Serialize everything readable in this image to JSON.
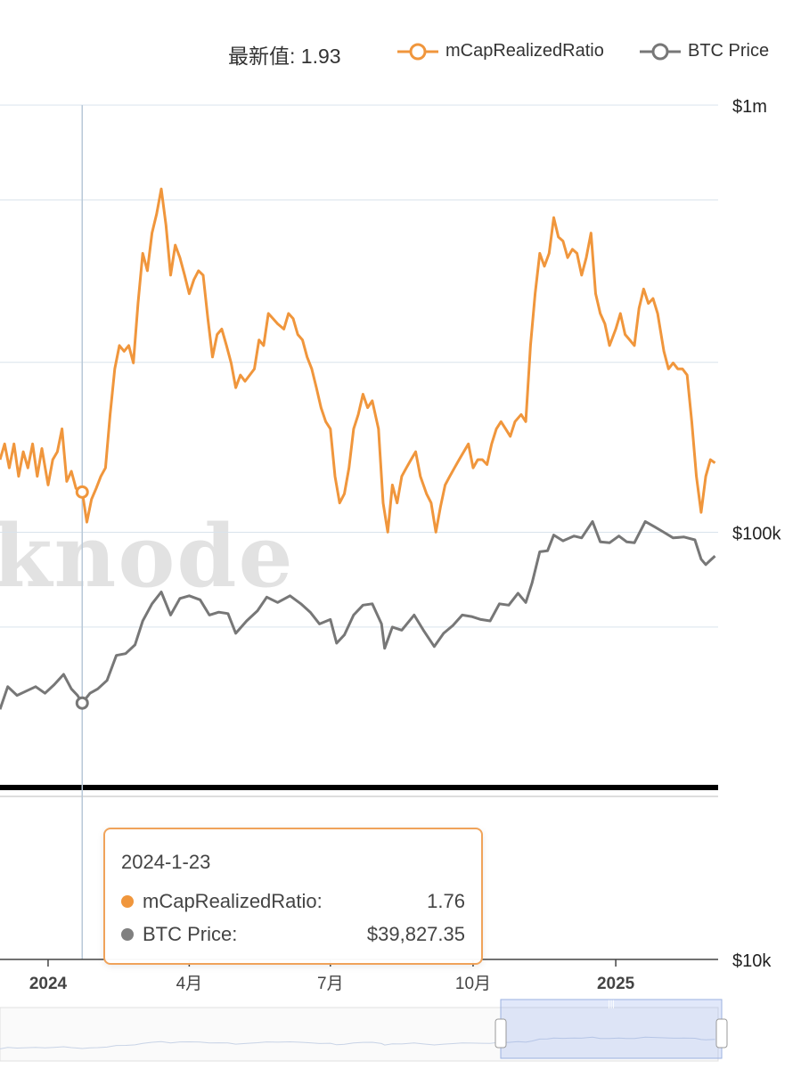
{
  "header": {
    "latest_label": "最新值: 1.93"
  },
  "chart_data": {
    "type": "line",
    "x_range": [
      "2023-12-01",
      "2025-03-08"
    ],
    "x_ticks": [
      {
        "date": "2024-01-01",
        "label": "2024",
        "bold": true
      },
      {
        "date": "2024-04-01",
        "label": "4月",
        "bold": false
      },
      {
        "date": "2024-07-01",
        "label": "7月",
        "bold": false
      },
      {
        "date": "2024-10-01",
        "label": "10月",
        "bold": false
      },
      {
        "date": "2025-01-01",
        "label": "2025",
        "bold": true
      }
    ],
    "y_right": {
      "scale": "log",
      "range": [
        10000,
        1000000
      ],
      "ticks": [
        {
          "value": 1000000,
          "label": "$1m"
        },
        {
          "value": 100000,
          "label": "$100k"
        },
        {
          "value": 10000,
          "label": "$10k"
        }
      ]
    },
    "y_left": {
      "scale": "log",
      "range": [
        0.4,
        6.0
      ]
    },
    "series": [
      {
        "name": "mCapRealizedRatio",
        "color": "#f0963c",
        "axis": "left",
        "points": [
          [
            "2023-12-01",
            1.95
          ],
          [
            "2023-12-04",
            2.05
          ],
          [
            "2023-12-07",
            1.9
          ],
          [
            "2023-12-10",
            2.05
          ],
          [
            "2023-12-13",
            1.85
          ],
          [
            "2023-12-16",
            2.0
          ],
          [
            "2023-12-19",
            1.9
          ],
          [
            "2023-12-22",
            2.05
          ],
          [
            "2023-12-25",
            1.85
          ],
          [
            "2023-12-28",
            2.02
          ],
          [
            "2024-01-01",
            1.8
          ],
          [
            "2024-01-04",
            1.95
          ],
          [
            "2024-01-07",
            2.0
          ],
          [
            "2024-01-10",
            2.15
          ],
          [
            "2024-01-13",
            1.82
          ],
          [
            "2024-01-16",
            1.88
          ],
          [
            "2024-01-19",
            1.78
          ],
          [
            "2024-01-23",
            1.76
          ],
          [
            "2024-01-26",
            1.6
          ],
          [
            "2024-01-29",
            1.72
          ],
          [
            "2024-02-01",
            1.78
          ],
          [
            "2024-02-04",
            1.85
          ],
          [
            "2024-02-07",
            1.9
          ],
          [
            "2024-02-10",
            2.25
          ],
          [
            "2024-02-13",
            2.6
          ],
          [
            "2024-02-16",
            2.8
          ],
          [
            "2024-02-19",
            2.75
          ],
          [
            "2024-02-22",
            2.8
          ],
          [
            "2024-02-25",
            2.65
          ],
          [
            "2024-02-28",
            3.2
          ],
          [
            "2024-03-02",
            3.75
          ],
          [
            "2024-03-05",
            3.55
          ],
          [
            "2024-03-08",
            4.0
          ],
          [
            "2024-03-11",
            4.25
          ],
          [
            "2024-03-14",
            4.6
          ],
          [
            "2024-03-17",
            4.1
          ],
          [
            "2024-03-20",
            3.5
          ],
          [
            "2024-03-23",
            3.85
          ],
          [
            "2024-03-26",
            3.7
          ],
          [
            "2024-03-29",
            3.5
          ],
          [
            "2024-04-01",
            3.3
          ],
          [
            "2024-04-04",
            3.45
          ],
          [
            "2024-04-07",
            3.55
          ],
          [
            "2024-04-10",
            3.5
          ],
          [
            "2024-04-13",
            3.05
          ],
          [
            "2024-04-16",
            2.7
          ],
          [
            "2024-04-19",
            2.9
          ],
          [
            "2024-04-22",
            2.95
          ],
          [
            "2024-04-25",
            2.8
          ],
          [
            "2024-04-28",
            2.65
          ],
          [
            "2024-05-01",
            2.45
          ],
          [
            "2024-05-04",
            2.55
          ],
          [
            "2024-05-07",
            2.5
          ],
          [
            "2024-05-10",
            2.55
          ],
          [
            "2024-05-13",
            2.6
          ],
          [
            "2024-05-16",
            2.85
          ],
          [
            "2024-05-19",
            2.8
          ],
          [
            "2024-05-22",
            3.1
          ],
          [
            "2024-05-25",
            3.05
          ],
          [
            "2024-05-28",
            3.0
          ],
          [
            "2024-06-01",
            2.95
          ],
          [
            "2024-06-04",
            3.1
          ],
          [
            "2024-06-07",
            3.05
          ],
          [
            "2024-06-10",
            2.9
          ],
          [
            "2024-06-13",
            2.85
          ],
          [
            "2024-06-16",
            2.7
          ],
          [
            "2024-06-19",
            2.6
          ],
          [
            "2024-06-22",
            2.45
          ],
          [
            "2024-06-25",
            2.3
          ],
          [
            "2024-06-28",
            2.2
          ],
          [
            "2024-07-01",
            2.15
          ],
          [
            "2024-07-04",
            1.85
          ],
          [
            "2024-07-07",
            1.7
          ],
          [
            "2024-07-10",
            1.75
          ],
          [
            "2024-07-13",
            1.9
          ],
          [
            "2024-07-16",
            2.15
          ],
          [
            "2024-07-19",
            2.25
          ],
          [
            "2024-07-22",
            2.4
          ],
          [
            "2024-07-25",
            2.3
          ],
          [
            "2024-07-28",
            2.35
          ],
          [
            "2024-08-01",
            2.15
          ],
          [
            "2024-08-04",
            1.7
          ],
          [
            "2024-08-07",
            1.55
          ],
          [
            "2024-08-10",
            1.8
          ],
          [
            "2024-08-13",
            1.7
          ],
          [
            "2024-08-16",
            1.85
          ],
          [
            "2024-08-19",
            1.9
          ],
          [
            "2024-08-22",
            1.95
          ],
          [
            "2024-08-25",
            2.0
          ],
          [
            "2024-08-28",
            1.85
          ],
          [
            "2024-09-01",
            1.75
          ],
          [
            "2024-09-04",
            1.7
          ],
          [
            "2024-09-07",
            1.55
          ],
          [
            "2024-09-10",
            1.68
          ],
          [
            "2024-09-13",
            1.8
          ],
          [
            "2024-09-16",
            1.85
          ],
          [
            "2024-09-19",
            1.9
          ],
          [
            "2024-09-22",
            1.95
          ],
          [
            "2024-09-25",
            2.0
          ],
          [
            "2024-09-28",
            2.05
          ],
          [
            "2024-10-01",
            1.9
          ],
          [
            "2024-10-04",
            1.95
          ],
          [
            "2024-10-07",
            1.95
          ],
          [
            "2024-10-10",
            1.92
          ],
          [
            "2024-10-13",
            2.05
          ],
          [
            "2024-10-16",
            2.15
          ],
          [
            "2024-10-19",
            2.2
          ],
          [
            "2024-10-22",
            2.15
          ],
          [
            "2024-10-25",
            2.1
          ],
          [
            "2024-10-28",
            2.2
          ],
          [
            "2024-11-01",
            2.25
          ],
          [
            "2024-11-04",
            2.2
          ],
          [
            "2024-11-07",
            2.8
          ],
          [
            "2024-11-10",
            3.3
          ],
          [
            "2024-11-13",
            3.75
          ],
          [
            "2024-11-16",
            3.6
          ],
          [
            "2024-11-19",
            3.75
          ],
          [
            "2024-11-22",
            4.2
          ],
          [
            "2024-11-25",
            3.95
          ],
          [
            "2024-11-28",
            3.9
          ],
          [
            "2024-12-01",
            3.7
          ],
          [
            "2024-12-04",
            3.8
          ],
          [
            "2024-12-07",
            3.75
          ],
          [
            "2024-12-10",
            3.5
          ],
          [
            "2024-12-13",
            3.7
          ],
          [
            "2024-12-16",
            4.0
          ],
          [
            "2024-12-19",
            3.3
          ],
          [
            "2024-12-22",
            3.1
          ],
          [
            "2024-12-25",
            3.0
          ],
          [
            "2024-12-28",
            2.8
          ],
          [
            "2025-01-01",
            2.95
          ],
          [
            "2025-01-04",
            3.1
          ],
          [
            "2025-01-07",
            2.9
          ],
          [
            "2025-01-10",
            2.85
          ],
          [
            "2025-01-13",
            2.8
          ],
          [
            "2025-01-16",
            3.15
          ],
          [
            "2025-01-19",
            3.35
          ],
          [
            "2025-01-22",
            3.2
          ],
          [
            "2025-01-25",
            3.25
          ],
          [
            "2025-01-28",
            3.1
          ],
          [
            "2025-02-01",
            2.75
          ],
          [
            "2025-02-04",
            2.6
          ],
          [
            "2025-02-07",
            2.65
          ],
          [
            "2025-02-10",
            2.6
          ],
          [
            "2025-02-13",
            2.6
          ],
          [
            "2025-02-16",
            2.55
          ],
          [
            "2025-02-19",
            2.2
          ],
          [
            "2025-02-22",
            1.85
          ],
          [
            "2025-02-25",
            1.65
          ],
          [
            "2025-02-28",
            1.85
          ],
          [
            "2025-03-03",
            1.95
          ],
          [
            "2025-03-06",
            1.93
          ]
        ]
      },
      {
        "name": "BTC Price",
        "color": "#777777",
        "axis": "right",
        "points": [
          [
            "2023-12-01",
            38500
          ],
          [
            "2023-12-06",
            43500
          ],
          [
            "2023-12-12",
            41500
          ],
          [
            "2023-12-18",
            42500
          ],
          [
            "2023-12-24",
            43500
          ],
          [
            "2023-12-30",
            42000
          ],
          [
            "2024-01-05",
            44000
          ],
          [
            "2024-01-11",
            46500
          ],
          [
            "2024-01-16",
            43000
          ],
          [
            "2024-01-20",
            41500
          ],
          [
            "2024-01-23",
            39827
          ],
          [
            "2024-01-28",
            42000
          ],
          [
            "2024-02-02",
            43000
          ],
          [
            "2024-02-08",
            45000
          ],
          [
            "2024-02-14",
            51500
          ],
          [
            "2024-02-20",
            52000
          ],
          [
            "2024-02-26",
            54500
          ],
          [
            "2024-03-02",
            62000
          ],
          [
            "2024-03-08",
            68000
          ],
          [
            "2024-03-14",
            72500
          ],
          [
            "2024-03-20",
            64000
          ],
          [
            "2024-03-26",
            70000
          ],
          [
            "2024-04-01",
            71000
          ],
          [
            "2024-04-08",
            69500
          ],
          [
            "2024-04-14",
            64000
          ],
          [
            "2024-04-20",
            65000
          ],
          [
            "2024-04-26",
            64500
          ],
          [
            "2024-05-01",
            58000
          ],
          [
            "2024-05-08",
            62000
          ],
          [
            "2024-05-15",
            65500
          ],
          [
            "2024-05-21",
            70500
          ],
          [
            "2024-05-28",
            68500
          ],
          [
            "2024-06-05",
            71000
          ],
          [
            "2024-06-12",
            68000
          ],
          [
            "2024-06-18",
            65000
          ],
          [
            "2024-06-24",
            61000
          ],
          [
            "2024-07-01",
            62500
          ],
          [
            "2024-07-05",
            55000
          ],
          [
            "2024-07-10",
            57500
          ],
          [
            "2024-07-16",
            64000
          ],
          [
            "2024-07-22",
            67500
          ],
          [
            "2024-07-28",
            68000
          ],
          [
            "2024-08-03",
            61000
          ],
          [
            "2024-08-05",
            53500
          ],
          [
            "2024-08-10",
            60000
          ],
          [
            "2024-08-16",
            59000
          ],
          [
            "2024-08-24",
            64000
          ],
          [
            "2024-08-30",
            59000
          ],
          [
            "2024-09-06",
            54000
          ],
          [
            "2024-09-12",
            58000
          ],
          [
            "2024-09-18",
            60500
          ],
          [
            "2024-09-24",
            64000
          ],
          [
            "2024-09-30",
            63500
          ],
          [
            "2024-10-06",
            62500
          ],
          [
            "2024-10-12",
            62000
          ],
          [
            "2024-10-18",
            68000
          ],
          [
            "2024-10-24",
            67500
          ],
          [
            "2024-10-30",
            72000
          ],
          [
            "2024-11-04",
            68500
          ],
          [
            "2024-11-08",
            76000
          ],
          [
            "2024-11-13",
            90000
          ],
          [
            "2024-11-18",
            90500
          ],
          [
            "2024-11-22",
            98500
          ],
          [
            "2024-11-28",
            95500
          ],
          [
            "2024-12-05",
            98000
          ],
          [
            "2024-12-10",
            97000
          ],
          [
            "2024-12-17",
            106000
          ],
          [
            "2024-12-22",
            95000
          ],
          [
            "2024-12-28",
            94500
          ],
          [
            "2025-01-03",
            98000
          ],
          [
            "2025-01-08",
            95000
          ],
          [
            "2025-01-13",
            94500
          ],
          [
            "2025-01-20",
            106000
          ],
          [
            "2025-01-26",
            103000
          ],
          [
            "2025-02-01",
            100000
          ],
          [
            "2025-02-07",
            97000
          ],
          [
            "2025-02-14",
            97500
          ],
          [
            "2025-02-21",
            96000
          ],
          [
            "2025-02-25",
            86500
          ],
          [
            "2025-02-28",
            84000
          ],
          [
            "2025-03-03",
            86000
          ],
          [
            "2025-03-06",
            88000
          ]
        ]
      }
    ],
    "cursor_date": "2024-01-23"
  },
  "tooltip": {
    "date": "2024-1-23",
    "rows": [
      {
        "label": "mCapRealizedRatio:",
        "value": "1.76",
        "color": "#f0963c"
      },
      {
        "label": "BTC Price:",
        "value": "$39,827.35",
        "color": "#808080"
      }
    ]
  },
  "watermark": "knode"
}
